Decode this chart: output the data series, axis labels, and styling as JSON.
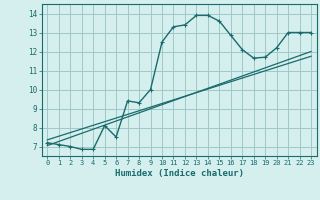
{
  "xlabel": "Humidex (Indice chaleur)",
  "bg_color": "#d5efef",
  "grid_color": "#a0c8c8",
  "line_color": "#1a6b6b",
  "xlim": [
    -0.5,
    23.5
  ],
  "ylim": [
    6.5,
    14.5
  ],
  "xticks": [
    0,
    1,
    2,
    3,
    4,
    5,
    6,
    7,
    8,
    9,
    10,
    11,
    12,
    13,
    14,
    15,
    16,
    17,
    18,
    19,
    20,
    21,
    22,
    23
  ],
  "yticks": [
    7,
    8,
    9,
    10,
    11,
    12,
    13,
    14
  ],
  "curve_x": [
    0,
    1,
    2,
    3,
    4,
    5,
    6,
    7,
    8,
    9,
    10,
    11,
    12,
    13,
    14,
    15,
    16,
    17,
    18,
    19,
    20,
    21,
    22,
    23
  ],
  "curve_y": [
    7.2,
    7.1,
    7.0,
    6.85,
    6.85,
    8.1,
    7.5,
    9.4,
    9.3,
    10.0,
    12.5,
    13.3,
    13.4,
    13.9,
    13.9,
    13.6,
    12.85,
    12.1,
    11.65,
    11.7,
    12.2,
    13.0,
    13.0,
    13.0
  ],
  "line1_x": [
    0,
    23
  ],
  "line1_y": [
    7.05,
    12.0
  ],
  "line2_x": [
    0,
    23
  ],
  "line2_y": [
    7.35,
    11.75
  ]
}
